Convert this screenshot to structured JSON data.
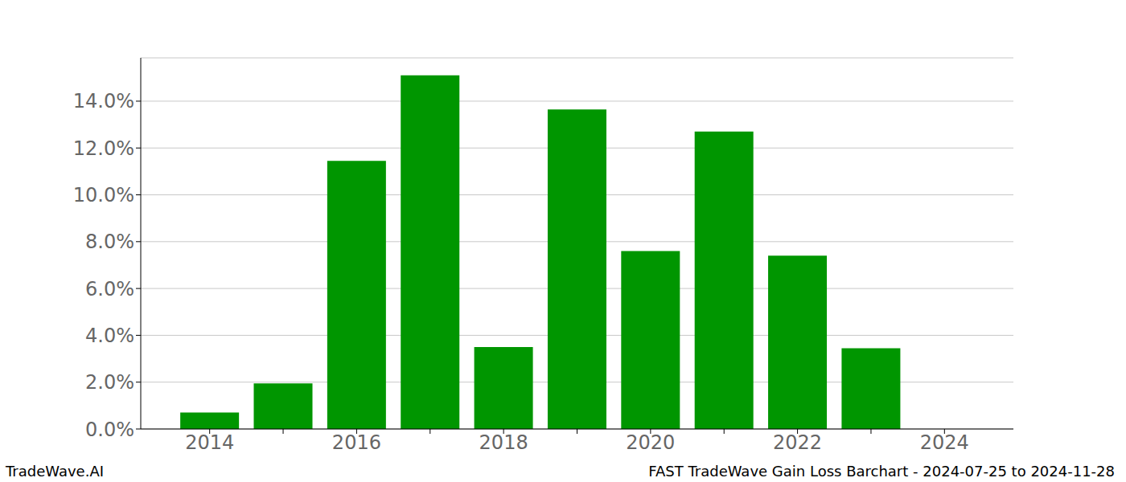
{
  "chart_data": {
    "type": "bar",
    "title": "FAST TradeWave Gain Loss Barchart - 2024-07-25 to 2024-11-28",
    "source": "TradeWave.AI",
    "categories": [
      "2014",
      null,
      "2016",
      null,
      "2018",
      null,
      "2020",
      null,
      "2022",
      null,
      "2024"
    ],
    "values": [
      0.7,
      1.95,
      11.45,
      15.1,
      3.5,
      13.65,
      7.6,
      12.7,
      7.4,
      3.45,
      null
    ],
    "color": "#009600",
    "ylim": [
      0,
      15.85
    ],
    "yticks": [
      {
        "value": 0,
        "label": "0.0%"
      },
      {
        "value": 2,
        "label": "2.0%"
      },
      {
        "value": 4,
        "label": "4.0%"
      },
      {
        "value": 6,
        "label": "6.0%"
      },
      {
        "value": 8,
        "label": "8.0%"
      },
      {
        "value": 10,
        "label": "10.0%"
      },
      {
        "value": 12,
        "label": "12.0%"
      },
      {
        "value": 14,
        "label": "14.0%"
      }
    ],
    "grid": true
  }
}
